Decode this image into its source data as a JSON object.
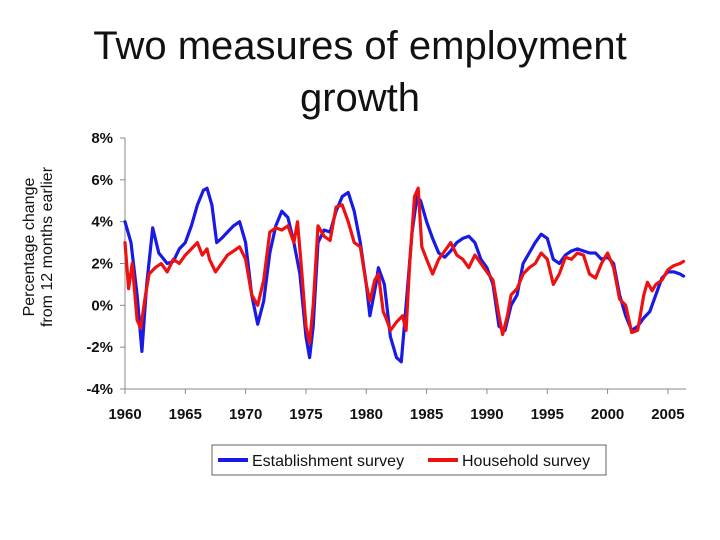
{
  "chart_data": {
    "type": "line",
    "title": "Two measures of employment growth",
    "ylabel_line1": "Percentage change",
    "ylabel_line2": "from 12 months earlier",
    "xlabel": "",
    "xlim": [
      1960,
      2006.5
    ],
    "ylim": [
      -4,
      8
    ],
    "x_ticks": [
      1960,
      1965,
      1970,
      1975,
      1980,
      1985,
      1990,
      1995,
      2000,
      2005
    ],
    "y_ticks": [
      -4,
      -2,
      0,
      2,
      4,
      6,
      8
    ],
    "y_tick_labels": [
      "-4%",
      "-2%",
      "0%",
      "2%",
      "4%",
      "6%",
      "8%"
    ],
    "grid": false,
    "legend_position": "bottom",
    "series": [
      {
        "name": "Establishment survey",
        "color": "#1a1ae6",
        "points": [
          [
            1960,
            4.0
          ],
          [
            1960.5,
            3.0
          ],
          [
            1961,
            0.5
          ],
          [
            1961.4,
            -2.2
          ],
          [
            1961.8,
            1.0
          ],
          [
            1962.3,
            3.7
          ],
          [
            1962.8,
            2.5
          ],
          [
            1963.5,
            2.0
          ],
          [
            1964,
            2.1
          ],
          [
            1964.5,
            2.7
          ],
          [
            1965,
            3.0
          ],
          [
            1965.5,
            3.8
          ],
          [
            1966,
            4.8
          ],
          [
            1966.5,
            5.5
          ],
          [
            1966.8,
            5.6
          ],
          [
            1967.2,
            4.8
          ],
          [
            1967.6,
            3.0
          ],
          [
            1968,
            3.2
          ],
          [
            1968.5,
            3.5
          ],
          [
            1969,
            3.8
          ],
          [
            1969.5,
            4.0
          ],
          [
            1970,
            3.0
          ],
          [
            1970.5,
            0.5
          ],
          [
            1971,
            -0.9
          ],
          [
            1971.5,
            0.2
          ],
          [
            1972,
            2.5
          ],
          [
            1972.5,
            3.8
          ],
          [
            1973,
            4.5
          ],
          [
            1973.5,
            4.2
          ],
          [
            1974,
            3.0
          ],
          [
            1974.5,
            1.5
          ],
          [
            1975,
            -1.5
          ],
          [
            1975.3,
            -2.5
          ],
          [
            1975.6,
            -1.0
          ],
          [
            1976,
            3.0
          ],
          [
            1976.5,
            3.6
          ],
          [
            1977,
            3.5
          ],
          [
            1977.5,
            4.5
          ],
          [
            1978,
            5.2
          ],
          [
            1978.5,
            5.4
          ],
          [
            1979,
            4.5
          ],
          [
            1979.5,
            3.0
          ],
          [
            1980,
            1.0
          ],
          [
            1980.3,
            -0.5
          ],
          [
            1980.8,
            1.0
          ],
          [
            1981,
            1.8
          ],
          [
            1981.5,
            1.0
          ],
          [
            1982,
            -1.5
          ],
          [
            1982.5,
            -2.5
          ],
          [
            1982.9,
            -2.7
          ],
          [
            1983.3,
            0.0
          ],
          [
            1983.8,
            3.5
          ],
          [
            1984.2,
            5.2
          ],
          [
            1984.5,
            5.0
          ],
          [
            1985,
            4.0
          ],
          [
            1985.5,
            3.2
          ],
          [
            1986,
            2.5
          ],
          [
            1986.5,
            2.3
          ],
          [
            1987,
            2.6
          ],
          [
            1987.5,
            3.0
          ],
          [
            1988,
            3.2
          ],
          [
            1988.5,
            3.3
          ],
          [
            1989,
            3.0
          ],
          [
            1989.5,
            2.2
          ],
          [
            1990,
            1.8
          ],
          [
            1990.5,
            1.0
          ],
          [
            1991,
            -1.0
          ],
          [
            1991.5,
            -1.2
          ],
          [
            1992,
            0.0
          ],
          [
            1992.5,
            0.5
          ],
          [
            1993,
            2.0
          ],
          [
            1993.5,
            2.5
          ],
          [
            1994,
            3.0
          ],
          [
            1994.5,
            3.4
          ],
          [
            1995,
            3.2
          ],
          [
            1995.5,
            2.2
          ],
          [
            1996,
            2.0
          ],
          [
            1996.5,
            2.4
          ],
          [
            1997,
            2.6
          ],
          [
            1997.5,
            2.7
          ],
          [
            1998,
            2.6
          ],
          [
            1998.5,
            2.5
          ],
          [
            1999,
            2.5
          ],
          [
            1999.5,
            2.2
          ],
          [
            2000,
            2.3
          ],
          [
            2000.5,
            2.0
          ],
          [
            2001,
            0.5
          ],
          [
            2001.5,
            -0.5
          ],
          [
            2002,
            -1.2
          ],
          [
            2002.5,
            -1.0
          ],
          [
            2003,
            -0.6
          ],
          [
            2003.5,
            -0.3
          ],
          [
            2004,
            0.5
          ],
          [
            2004.5,
            1.3
          ],
          [
            2005,
            1.6
          ],
          [
            2005.5,
            1.6
          ],
          [
            2006,
            1.5
          ],
          [
            2006.3,
            1.4
          ]
        ]
      },
      {
        "name": "Household survey",
        "color": "#ee1111",
        "points": [
          [
            1960,
            3.0
          ],
          [
            1960.3,
            0.8
          ],
          [
            1960.6,
            2.0
          ],
          [
            1961,
            -0.7
          ],
          [
            1961.3,
            -1.1
          ],
          [
            1961.7,
            0.5
          ],
          [
            1962,
            1.5
          ],
          [
            1962.5,
            1.8
          ],
          [
            1963,
            2.0
          ],
          [
            1963.5,
            1.6
          ],
          [
            1964,
            2.2
          ],
          [
            1964.5,
            2.0
          ],
          [
            1965,
            2.4
          ],
          [
            1965.5,
            2.7
          ],
          [
            1966,
            3.0
          ],
          [
            1966.4,
            2.4
          ],
          [
            1966.8,
            2.7
          ],
          [
            1967,
            2.2
          ],
          [
            1967.5,
            1.6
          ],
          [
            1968,
            2.0
          ],
          [
            1968.5,
            2.4
          ],
          [
            1969,
            2.6
          ],
          [
            1969.5,
            2.8
          ],
          [
            1970,
            2.2
          ],
          [
            1970.5,
            0.5
          ],
          [
            1971,
            0.0
          ],
          [
            1971.5,
            1.2
          ],
          [
            1972,
            3.5
          ],
          [
            1972.5,
            3.7
          ],
          [
            1973,
            3.6
          ],
          [
            1973.5,
            3.8
          ],
          [
            1974,
            3.0
          ],
          [
            1974.3,
            4.0
          ],
          [
            1974.6,
            2.0
          ],
          [
            1975,
            -1.0
          ],
          [
            1975.3,
            -1.8
          ],
          [
            1975.6,
            0.0
          ],
          [
            1976,
            3.8
          ],
          [
            1976.5,
            3.3
          ],
          [
            1977,
            3.1
          ],
          [
            1977.5,
            4.7
          ],
          [
            1978,
            4.8
          ],
          [
            1978.5,
            4.0
          ],
          [
            1979,
            3.0
          ],
          [
            1979.5,
            2.8
          ],
          [
            1980,
            1.0
          ],
          [
            1980.3,
            0.2
          ],
          [
            1980.7,
            1.2
          ],
          [
            1981,
            1.5
          ],
          [
            1981.4,
            -0.3
          ],
          [
            1981.7,
            -0.7
          ],
          [
            1982,
            -1.2
          ],
          [
            1982.5,
            -0.8
          ],
          [
            1983,
            -0.5
          ],
          [
            1983.3,
            -1.2
          ],
          [
            1983.6,
            2.0
          ],
          [
            1984,
            5.2
          ],
          [
            1984.3,
            5.6
          ],
          [
            1984.6,
            2.8
          ],
          [
            1985,
            2.2
          ],
          [
            1985.5,
            1.5
          ],
          [
            1986,
            2.2
          ],
          [
            1986.5,
            2.6
          ],
          [
            1987,
            3.0
          ],
          [
            1987.5,
            2.4
          ],
          [
            1988,
            2.2
          ],
          [
            1988.5,
            1.8
          ],
          [
            1989,
            2.4
          ],
          [
            1989.5,
            2.0
          ],
          [
            1990,
            1.6
          ],
          [
            1990.5,
            1.2
          ],
          [
            1991,
            -0.5
          ],
          [
            1991.3,
            -1.4
          ],
          [
            1991.7,
            -0.5
          ],
          [
            1992,
            0.5
          ],
          [
            1992.5,
            0.8
          ],
          [
            1993,
            1.5
          ],
          [
            1993.5,
            1.8
          ],
          [
            1994,
            2.0
          ],
          [
            1994.5,
            2.5
          ],
          [
            1995,
            2.2
          ],
          [
            1995.5,
            1.0
          ],
          [
            1996,
            1.5
          ],
          [
            1996.5,
            2.3
          ],
          [
            1997,
            2.2
          ],
          [
            1997.5,
            2.5
          ],
          [
            1998,
            2.4
          ],
          [
            1998.5,
            1.5
          ],
          [
            1999,
            1.3
          ],
          [
            1999.5,
            2.0
          ],
          [
            2000,
            2.5
          ],
          [
            2000.5,
            1.8
          ],
          [
            2001,
            0.3
          ],
          [
            2001.5,
            0.0
          ],
          [
            2002,
            -1.3
          ],
          [
            2002.5,
            -1.2
          ],
          [
            2003,
            0.5
          ],
          [
            2003.3,
            1.1
          ],
          [
            2003.7,
            0.7
          ],
          [
            2004,
            1.0
          ],
          [
            2004.5,
            1.2
          ],
          [
            2005,
            1.7
          ],
          [
            2005.5,
            1.9
          ],
          [
            2006,
            2.0
          ],
          [
            2006.3,
            2.1
          ]
        ]
      }
    ]
  }
}
